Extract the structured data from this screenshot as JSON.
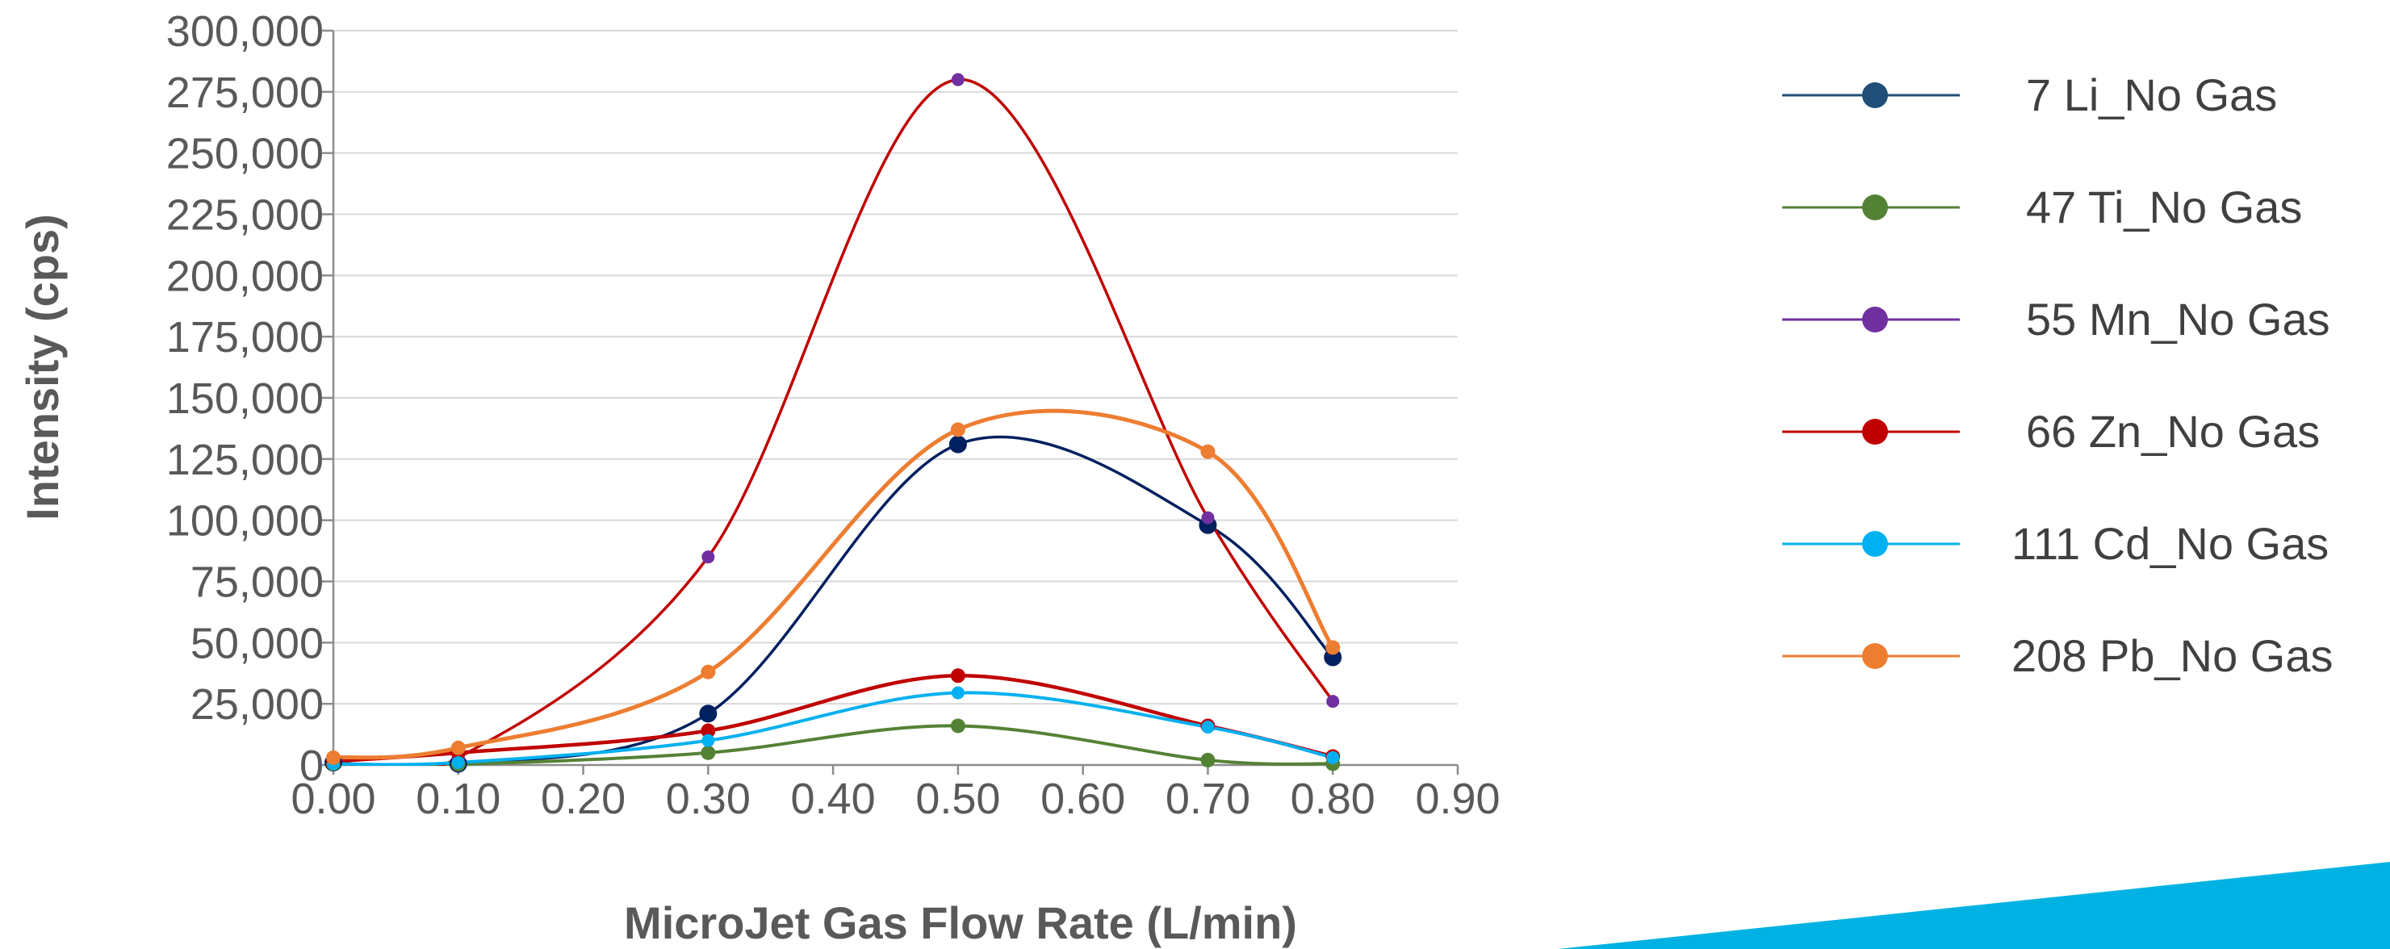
{
  "chart_data": {
    "type": "line",
    "xlabel": "MicroJet Gas Flow Rate (L/min)",
    "ylabel": "Intensity (cps)",
    "xlim": [
      0,
      0.9
    ],
    "ylim": [
      0,
      300000
    ],
    "x_ticks": [
      "0.00",
      "0.10",
      "0.20",
      "0.30",
      "0.40",
      "0.50",
      "0.60",
      "0.70",
      "0.80",
      "0.90"
    ],
    "y_ticks": [
      "0",
      "25,000",
      "50,000",
      "75,000",
      "100,000",
      "125,000",
      "150,000",
      "175,000",
      "200,000",
      "225,000",
      "250,000",
      "275,000",
      "300,000"
    ],
    "grid": "horizontal",
    "smooth": true,
    "legend_position": "right",
    "x": [
      0.0,
      0.1,
      0.3,
      0.5,
      0.7,
      0.8
    ],
    "series": [
      {
        "name": "7 Li_No Gas",
        "color": "#002060",
        "legend_color": "#1f4e79",
        "values": [
          1000,
          500,
          21000,
          131000,
          98000,
          44000
        ]
      },
      {
        "name": "47 Ti_No Gas",
        "color": "#548235",
        "legend_color": "#548235",
        "values": [
          500,
          300,
          5000,
          16000,
          2000,
          500
        ]
      },
      {
        "name": "55 Mn_No Gas",
        "color": "#7030a0",
        "legend_color": "#7030a0",
        "line_color": "#c00000",
        "values": [
          1500,
          3000,
          85000,
          280000,
          101000,
          26000
        ]
      },
      {
        "name": "66 Zn_No Gas",
        "color": "#c00000",
        "legend_color": "#c00000",
        "values": [
          1500,
          5000,
          14000,
          36500,
          16000,
          3500
        ]
      },
      {
        "name": "111 Cd_No Gas",
        "color": "#00b0f0",
        "legend_color": "#00b0f0",
        "values": [
          500,
          1000,
          10000,
          29500,
          15500,
          3000
        ]
      },
      {
        "name": "208 Pb_No Gas",
        "color": "#ed7d31",
        "legend_color": "#ed7d31",
        "values": [
          3000,
          7000,
          38000,
          137000,
          128000,
          48000
        ]
      }
    ]
  },
  "decoration": {
    "accent_color": "#00b2e3"
  }
}
